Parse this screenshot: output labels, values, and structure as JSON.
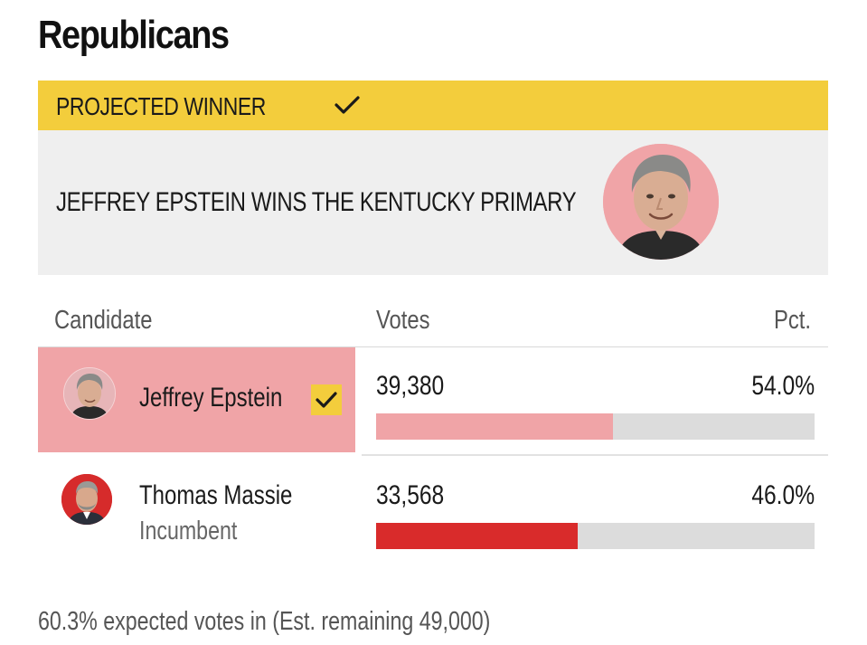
{
  "party": {
    "title": "Republicans"
  },
  "banner": {
    "label": "PROJECTED WINNER",
    "check_icon": "checkmark-icon",
    "color": "#f3cd3c"
  },
  "headline": {
    "text": "JEFFREY EPSTEIN WINS THE KENTUCKY PRIMARY",
    "photo_icon": "candidate-portrait"
  },
  "table": {
    "columns": [
      "Candidate",
      "Votes",
      "Pct."
    ],
    "rows": [
      {
        "name": "Jeffrey Epstein",
        "note": "",
        "votes": "39,380",
        "pct": "54.0%",
        "share": 0.54,
        "winner": true,
        "bar_color": "#f0a4a7",
        "icon": "checkmark-icon"
      },
      {
        "name": "Thomas Massie",
        "note": "Incumbent",
        "votes": "33,568",
        "pct": "46.0%",
        "share": 0.46,
        "winner": false,
        "bar_color": "#d92b2b"
      }
    ]
  },
  "footer": {
    "note": "60.3% expected votes in (Est. remaining 49,000)"
  }
}
